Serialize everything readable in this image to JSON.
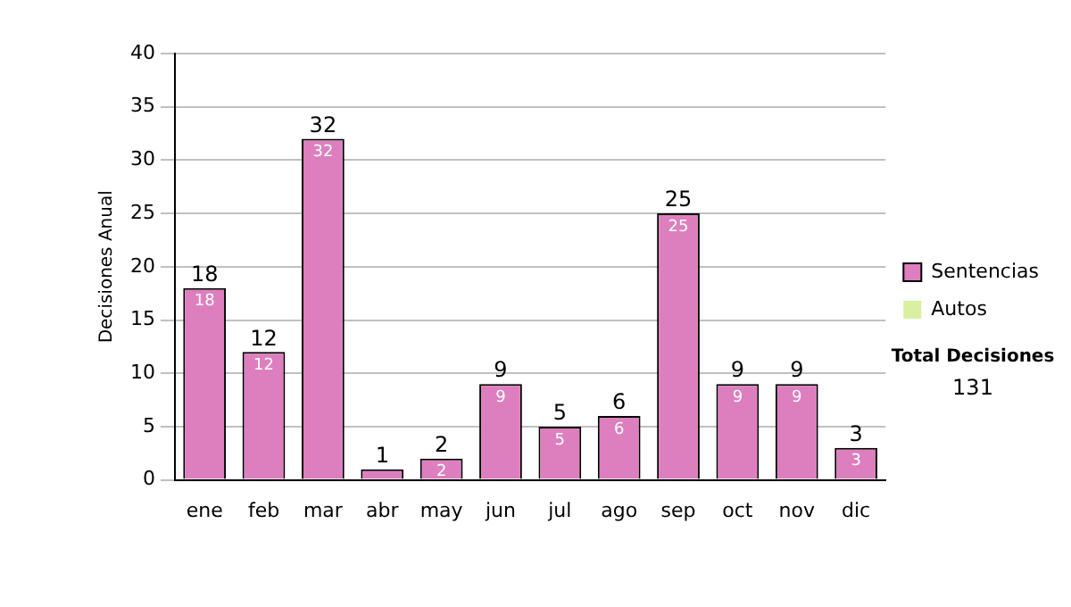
{
  "chart_data": {
    "type": "bar",
    "ylabel": "Decisiones Anual",
    "categories": [
      "ene",
      "feb",
      "mar",
      "abr",
      "may",
      "jun",
      "jul",
      "ago",
      "sep",
      "oct",
      "nov",
      "dic"
    ],
    "series": [
      {
        "name": "Sentencias",
        "color": "#dd7fbf",
        "values": [
          18,
          12,
          32,
          1,
          2,
          9,
          5,
          6,
          25,
          9,
          9,
          3
        ],
        "value_labels": [
          "18",
          "12",
          "32",
          null,
          "2",
          "9",
          "5",
          "6",
          "25",
          "9",
          "9",
          "3"
        ]
      },
      {
        "name": "Autos",
        "color": "#d8f0a0",
        "values": [
          0,
          0,
          0,
          0,
          0,
          0,
          0,
          0,
          0,
          0,
          0,
          0
        ]
      }
    ],
    "stacked": true,
    "totals": [
      "18",
      "12",
      "32",
      "1",
      "2",
      "9",
      "5",
      "6",
      "25",
      "9",
      "9",
      "3"
    ],
    "ylim": [
      0,
      40
    ],
    "yticks": [
      0,
      5,
      10,
      15,
      20,
      25,
      30,
      35,
      40
    ],
    "grid": "y",
    "legend": "right",
    "annotations": [
      "Total Decisiones",
      "131"
    ]
  }
}
